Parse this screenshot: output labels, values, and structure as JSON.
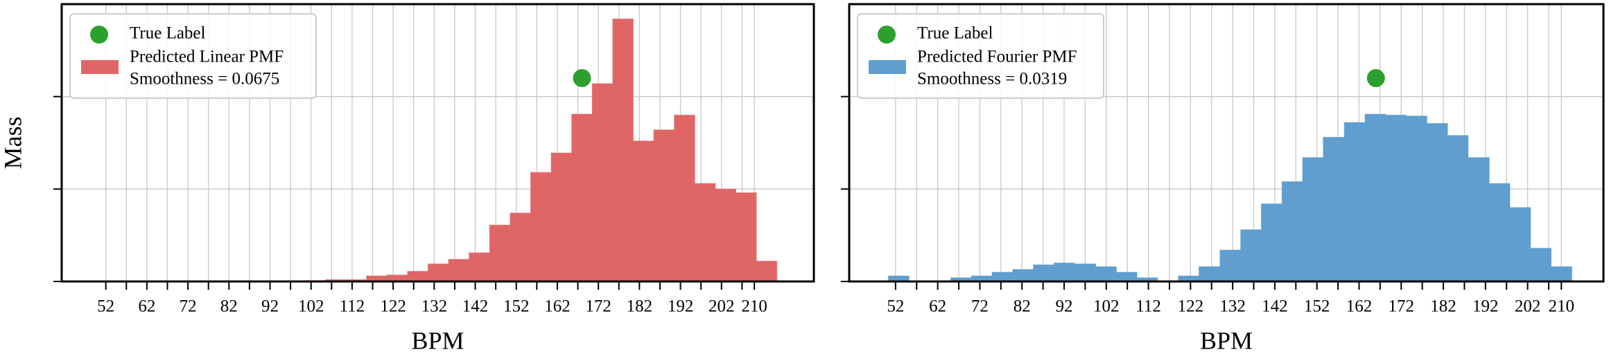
{
  "chart_data": [
    {
      "type": "histogram",
      "xlabel": "BPM",
      "ylabel": "Mass",
      "bins": [
        45.5,
        50.5,
        55.5,
        60.5,
        65.5,
        70.5,
        75.5,
        80.5,
        85.5,
        90.5,
        95.5,
        100.5,
        105.5,
        110.5,
        115.5,
        120.5,
        125.5,
        130.5,
        135.5,
        140.5,
        145.5,
        150.5,
        155.5,
        160.5,
        165.5,
        170.5,
        175.5,
        180.5,
        185.5,
        190.5,
        195.5,
        200.5,
        205.5,
        210.5,
        215.5
      ],
      "series": [
        {
          "name": "Predicted Linear PMF",
          "note": "Smoothness = 0.0675",
          "color": "#e06666",
          "values": [
            0,
            0,
            0,
            0,
            0,
            0,
            0,
            0,
            0,
            0,
            0,
            0.0005,
            0.001,
            0.001,
            0.003,
            0.0035,
            0.0055,
            0.0095,
            0.012,
            0.0155,
            0.0305,
            0.037,
            0.059,
            0.0695,
            0.0905,
            0.107,
            0.142,
            0.076,
            0.082,
            0.09,
            0.053,
            0.05,
            0.048,
            0.011
          ]
        }
      ],
      "true_label": {
        "name": "True Label",
        "color": "#2ca02c",
        "x": 168,
        "y": 0.11
      },
      "xlim": [
        41.25,
        224.5
      ],
      "ylim": [
        0,
        0.15
      ],
      "xticks": [
        52,
        62,
        72,
        82,
        92,
        102,
        112,
        122,
        132,
        142,
        152,
        162,
        172,
        182,
        192,
        202,
        210
      ],
      "minor_xticks": [
        57,
        67,
        77,
        87,
        97,
        107,
        117,
        127,
        137,
        147,
        157,
        167,
        177,
        187,
        197,
        207
      ],
      "ytick_marks": [
        0,
        0.05,
        0.1
      ],
      "grid": true
    },
    {
      "type": "histogram",
      "xlabel": "BPM",
      "bins": [
        50.3,
        55.2,
        60.1,
        65.1,
        70.0,
        74.9,
        79.8,
        84.7,
        89.6,
        94.5,
        99.5,
        104.4,
        109.3,
        114.2,
        119.1,
        124.0,
        129.0,
        133.9,
        138.8,
        143.7,
        148.6,
        153.5,
        158.5,
        163.4,
        168.3,
        173.2,
        178.1,
        183.0,
        187.9,
        192.9,
        197.8,
        202.7,
        207.6,
        212.5
      ],
      "series": [
        {
          "name": "Predicted Fourier PMF",
          "note": "Smoothness = 0.0319",
          "color": "#5f9ecf",
          "values": [
            0.003,
            0,
            0,
            0.002,
            0.003,
            0.005,
            0.0065,
            0.009,
            0.01,
            0.0095,
            0.008,
            0.005,
            0.002,
            0,
            0.003,
            0.008,
            0.017,
            0.028,
            0.042,
            0.054,
            0.067,
            0.078,
            0.086,
            0.0905,
            0.09,
            0.0895,
            0.0855,
            0.079,
            0.067,
            0.053,
            0.04,
            0.018,
            0.008
          ]
        }
      ],
      "true_label": {
        "name": "True Label",
        "color": "#2ca02c",
        "x": 166,
        "y": 0.11
      },
      "xlim": [
        41,
        220
      ],
      "ylim": [
        0,
        0.15
      ],
      "xticks": [
        52,
        62,
        72,
        82,
        92,
        102,
        112,
        122,
        132,
        142,
        152,
        162,
        172,
        182,
        192,
        202,
        210
      ],
      "minor_xticks": [
        57,
        67,
        77,
        87,
        97,
        107,
        117,
        127,
        137,
        147,
        157,
        167,
        177,
        187,
        197,
        207
      ],
      "ytick_marks": [
        0,
        0.05,
        0.1
      ],
      "grid": true
    }
  ]
}
